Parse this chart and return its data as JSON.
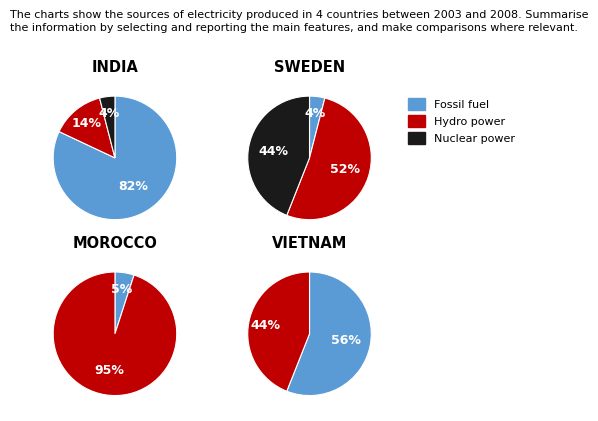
{
  "title_line1": "The charts show the sources of electricity produced in 4 countries between 2003 and 2008. Summarise",
  "title_line2": "the information by selecting and reporting the main features, and make comparisons where relevant.",
  "colors": {
    "fossil": "#5B9BD5",
    "hydro": "#C00000",
    "nuclear": "#1A1A1A"
  },
  "charts": [
    {
      "title": "INDIA",
      "values": [
        82,
        14,
        4
      ],
      "labels": [
        "82%",
        "14%",
        "4%"
      ],
      "keys": [
        "fossil",
        "hydro",
        "nuclear"
      ],
      "startangle": 90,
      "label_r": [
        0.55,
        0.72,
        0.72
      ]
    },
    {
      "title": "SWEDEN",
      "values": [
        4,
        52,
        44
      ],
      "labels": [
        "4%",
        "52%",
        "44%"
      ],
      "keys": [
        "fossil",
        "hydro",
        "nuclear"
      ],
      "startangle": 90,
      "label_r": [
        0.72,
        0.6,
        0.6
      ]
    },
    {
      "title": "MOROCCO",
      "values": [
        5,
        95
      ],
      "labels": [
        "5%",
        "95%"
      ],
      "keys": [
        "fossil",
        "hydro"
      ],
      "startangle": 90,
      "label_r": [
        0.72,
        0.6
      ]
    },
    {
      "title": "VIETNAM",
      "values": [
        56,
        44
      ],
      "labels": [
        "56%",
        "44%"
      ],
      "keys": [
        "fossil",
        "hydro"
      ],
      "startangle": 90,
      "label_r": [
        0.6,
        0.72
      ]
    }
  ],
  "legend_labels": [
    "Fossil fuel",
    "Hydro power",
    "Nuclear power"
  ],
  "legend_keys": [
    "fossil",
    "hydro",
    "nuclear"
  ],
  "background_color": "#FFFFFF",
  "title_fontsize": 8.0,
  "chart_title_fontsize": 10.5,
  "pct_fontsize": 9.0
}
